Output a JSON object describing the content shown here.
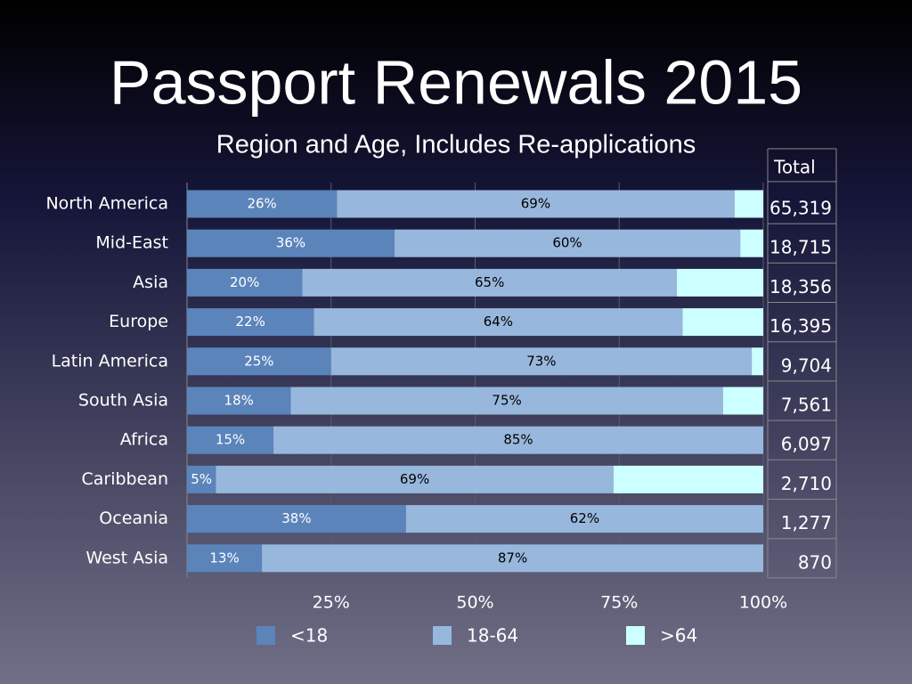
{
  "chart_data": {
    "type": "stacked_barh",
    "title": "Passport Renewals 2015",
    "subtitle": "Region and Age, Includes Re-applications",
    "categories": [
      "North America",
      "Mid-East",
      "Asia",
      "Europe",
      "Latin America",
      "South Asia",
      "Africa",
      "Caribbean",
      "Oceania",
      "West Asia"
    ],
    "series": [
      {
        "name": "<18",
        "color": "#5b84bb",
        "values": [
          26,
          36,
          20,
          22,
          25,
          18,
          15,
          5,
          38,
          13
        ],
        "value_labels": [
          "26%",
          "36%",
          "20%",
          "22%",
          "25%",
          "18%",
          "15%",
          "5%",
          "38%",
          "13%"
        ]
      },
      {
        "name": "18-64",
        "color": "#98b7dd",
        "values": [
          69,
          60,
          65,
          64,
          73,
          75,
          85,
          69,
          62,
          87
        ],
        "value_labels": [
          "69%",
          "60%",
          "65%",
          "64%",
          "73%",
          "75%",
          "85%",
          "69%",
          "62%",
          "87%"
        ]
      },
      {
        "name": ">64",
        "color": "#ccffff",
        "values": [
          5,
          4,
          15,
          14,
          2,
          7,
          0,
          26,
          0,
          0
        ]
      }
    ],
    "xlim": [
      0,
      100
    ],
    "xticks": [
      {
        "value": 25,
        "label": "25%"
      },
      {
        "value": 50,
        "label": "50%"
      },
      {
        "value": 75,
        "label": "75%"
      },
      {
        "value": 100,
        "label": "100%"
      }
    ],
    "grid": true,
    "legend": "bottom",
    "totals": {
      "header": "Total",
      "values": [
        "65,319",
        "18,715",
        "18,356",
        "16,395",
        "9,704",
        "7,561",
        "6,097",
        "2,710",
        "1,277",
        "870"
      ]
    }
  }
}
